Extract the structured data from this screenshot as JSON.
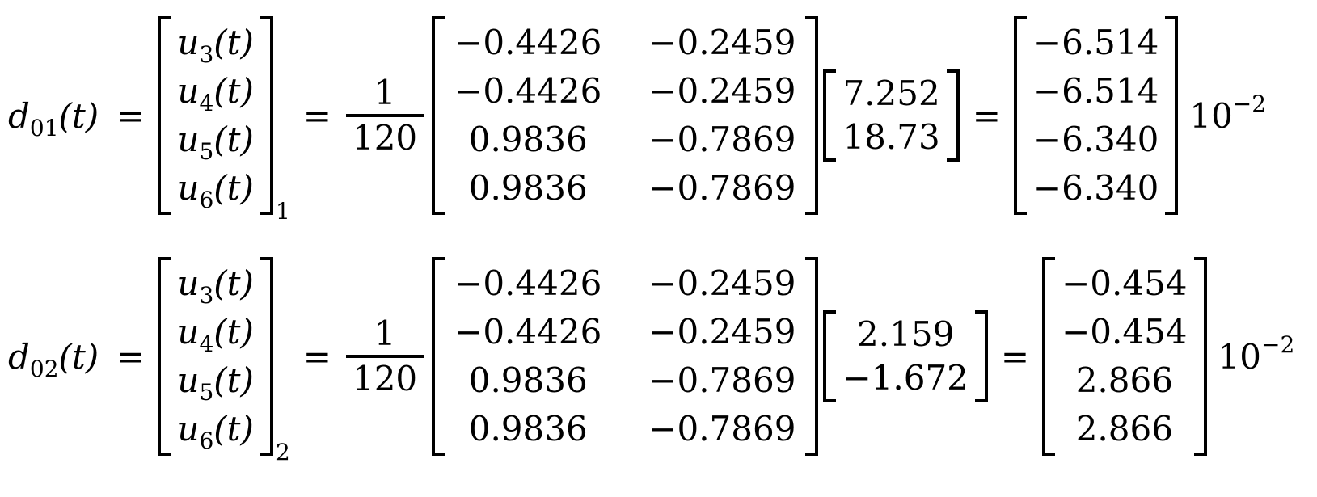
{
  "page": {
    "background": "#ffffff",
    "text_color": "#000000"
  },
  "equations": [
    {
      "id": "d01",
      "lhs": {
        "base": "d",
        "sub": "01",
        "arg": "(t)"
      },
      "eq_sign_1": "=",
      "u_vector": {
        "base": "u",
        "subs": [
          "3",
          "4",
          "5",
          "6"
        ],
        "arg": "(t)",
        "outer_sub": "1"
      },
      "eq_sign_2": "=",
      "fraction": {
        "numerator": "1",
        "denominator": "120"
      },
      "coeff_matrix": [
        [
          "−0.4426",
          "−0.2459"
        ],
        [
          "−0.4426",
          "−0.2459"
        ],
        [
          "0.9836",
          "−0.7869"
        ],
        [
          "0.9836",
          "−0.7869"
        ]
      ],
      "input_vector": [
        "7.252",
        "18.73"
      ],
      "eq_sign_3": "=",
      "result_vector": [
        "−6.514",
        "−6.514",
        "−6.340",
        "−6.340"
      ],
      "scale": {
        "base": "10",
        "exponent": "−2"
      }
    },
    {
      "id": "d02",
      "lhs": {
        "base": "d",
        "sub": "02",
        "arg": "(t)"
      },
      "eq_sign_1": "=",
      "u_vector": {
        "base": "u",
        "subs": [
          "3",
          "4",
          "5",
          "6"
        ],
        "arg": "(t)",
        "outer_sub": "2"
      },
      "eq_sign_2": "=",
      "fraction": {
        "numerator": "1",
        "denominator": "120"
      },
      "coeff_matrix": [
        [
          "−0.4426",
          "−0.2459"
        ],
        [
          "−0.4426",
          "−0.2459"
        ],
        [
          "0.9836",
          "−0.7869"
        ],
        [
          "0.9836",
          "−0.7869"
        ]
      ],
      "input_vector": [
        "2.159",
        "−1.672"
      ],
      "eq_sign_3": "=",
      "result_vector": [
        "−0.454",
        "−0.454",
        "2.866",
        "2.866"
      ],
      "scale": {
        "base": "10",
        "exponent": "−2"
      }
    }
  ]
}
